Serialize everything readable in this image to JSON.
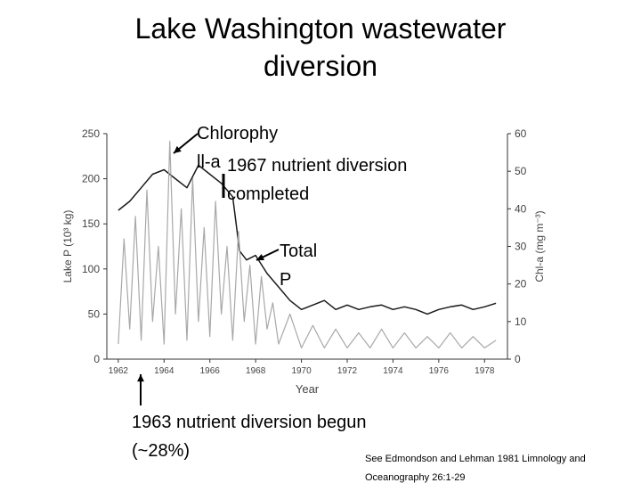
{
  "slide": {
    "title_line1": "Lake Washington wastewater",
    "title_line2": "diversion",
    "callouts": {
      "chlorophyll_1": "Chlorophy",
      "chlorophyll_2": "ll-a",
      "diversion_1967_1": "1967 nutrient diversion",
      "diversion_1967_2": "completed",
      "total_p_1": "Total",
      "total_p_2": "P",
      "diversion_1963_1": "1963 nutrient diversion begun",
      "diversion_1963_2": "(~28%)"
    },
    "citation": "See Edmondson and Lehman 1981 Limnology and",
    "citation_line2": "Oceanography 26:1-29"
  },
  "chart_data": {
    "type": "line",
    "xlabel": "Year",
    "ylabel_left": "Lake P (10³ kg)",
    "ylabel_right": "Chl-a (mg m⁻³)",
    "xlim": [
      1961.5,
      1979
    ],
    "ylim_left": [
      0,
      250
    ],
    "ylim_right": [
      0,
      60
    ],
    "x_ticks": [
      "1962",
      "1964",
      "1966",
      "1968",
      "1970",
      "1972",
      "1974",
      "1976",
      "1978"
    ],
    "y_left_ticks": [
      "0",
      "50",
      "100",
      "150",
      "200",
      "250"
    ],
    "y_right_ticks": [
      "0",
      "10",
      "20",
      "30",
      "40",
      "50",
      "60"
    ],
    "series": [
      {
        "name": "Total P",
        "axis": "left",
        "color": "#1a1a1a",
        "x": [
          1962.0,
          1962.5,
          1963.0,
          1963.5,
          1964.0,
          1964.5,
          1965.0,
          1965.5,
          1966.0,
          1966.5,
          1967.0,
          1967.3,
          1967.6,
          1968.0,
          1968.5,
          1969.0,
          1969.5,
          1970.0,
          1970.5,
          1971.0,
          1971.5,
          1972.0,
          1972.5,
          1973.0,
          1973.5,
          1974.0,
          1974.5,
          1975.0,
          1975.5,
          1976.0,
          1976.5,
          1977.0,
          1977.5,
          1978.0,
          1978.5
        ],
        "values": [
          165,
          175,
          190,
          205,
          210,
          200,
          190,
          215,
          205,
          195,
          180,
          120,
          110,
          115,
          95,
          80,
          65,
          55,
          60,
          65,
          55,
          60,
          55,
          58,
          60,
          55,
          58,
          55,
          50,
          55,
          58,
          60,
          55,
          58,
          62
        ]
      },
      {
        "name": "Chlorophyll-a",
        "axis": "right",
        "color": "#a8a8a8",
        "x": [
          1962.0,
          1962.25,
          1962.5,
          1962.75,
          1963.0,
          1963.25,
          1963.5,
          1963.75,
          1964.0,
          1964.25,
          1964.5,
          1964.75,
          1965.0,
          1965.25,
          1965.5,
          1965.75,
          1966.0,
          1966.25,
          1966.5,
          1966.75,
          1967.0,
          1967.25,
          1967.5,
          1967.75,
          1968.0,
          1968.25,
          1968.5,
          1968.75,
          1969.0,
          1969.5,
          1970.0,
          1970.5,
          1971.0,
          1971.5,
          1972.0,
          1972.5,
          1973.0,
          1973.5,
          1974.0,
          1974.5,
          1975.0,
          1975.5,
          1976.0,
          1976.5,
          1977.0,
          1977.5,
          1978.0,
          1978.5
        ],
        "values": [
          4,
          32,
          8,
          38,
          5,
          45,
          10,
          30,
          4,
          58,
          12,
          40,
          5,
          48,
          10,
          35,
          6,
          42,
          12,
          30,
          5,
          34,
          10,
          25,
          4,
          22,
          8,
          15,
          4,
          12,
          3,
          9,
          3,
          8,
          3,
          7,
          3,
          8,
          3,
          7,
          3,
          6,
          3,
          7,
          3,
          6,
          3,
          5
        ]
      }
    ]
  }
}
